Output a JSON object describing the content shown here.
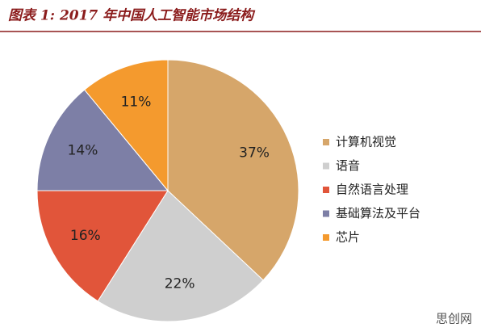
{
  "chart_data": {
    "type": "pie",
    "title": "图表 1: 2017 年中国人工智能市场结构",
    "categories": [
      "计算机视觉",
      "语音",
      "自然语言处理",
      "基础算法及平台",
      "芯片"
    ],
    "values": [
      37,
      22,
      16,
      14,
      11
    ],
    "value_labels": [
      "37%",
      "22%",
      "16%",
      "14%",
      "11%"
    ],
    "colors": [
      "#d6a66a",
      "#cfcfcf",
      "#e1553a",
      "#7d7fa6",
      "#f49a2e"
    ],
    "legend": "right"
  },
  "watermark": "思创网"
}
